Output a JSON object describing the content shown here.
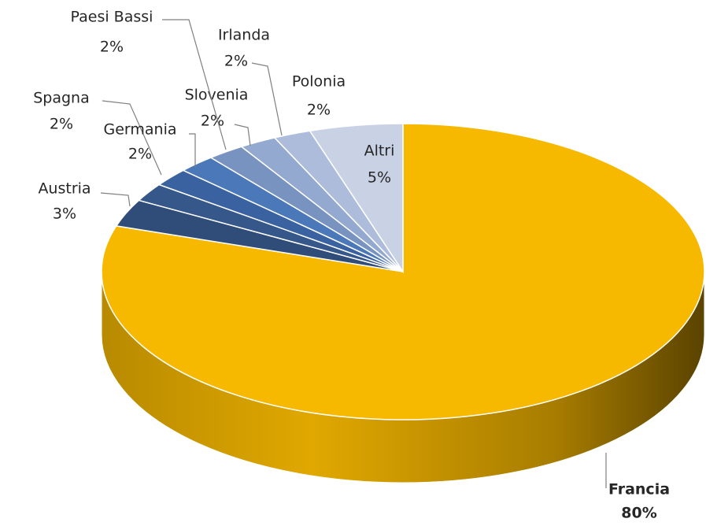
{
  "chart_data": {
    "type": "pie",
    "categories": [
      "Francia",
      "Austria",
      "Spagna",
      "Germania",
      "Slovenia",
      "Paesi Bassi",
      "Irlanda",
      "Polonia",
      "Altri"
    ],
    "values": [
      80,
      3,
      2,
      2,
      2,
      2,
      2,
      2,
      5
    ],
    "value_labels": [
      "80%",
      "3%",
      "2%",
      "2%",
      "2%",
      "2%",
      "2%",
      "2%",
      "5%"
    ],
    "colors": [
      "#f6b900",
      "#2f4d78",
      "#35578a",
      "#3b62a0",
      "#4a78b8",
      "#7893c0",
      "#94a9cf",
      "#aebcdb",
      "#c9d1e4"
    ]
  }
}
